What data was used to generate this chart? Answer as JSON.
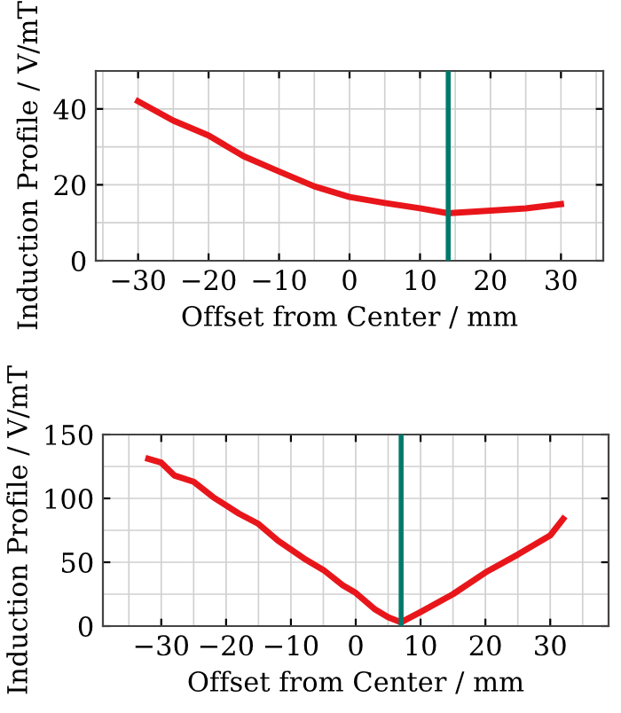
{
  "chart_data": [
    {
      "type": "line",
      "xlabel": "Offset from Center / mm",
      "ylabel": "Induction Profile / V/mT",
      "xlim": [
        -36,
        36
      ],
      "ylim": [
        0,
        50
      ],
      "xticks": [
        -30,
        -20,
        -10,
        0,
        10,
        20,
        30
      ],
      "yticks": [
        0,
        20,
        40
      ],
      "grid": true,
      "marker": "none",
      "line_style": "solid",
      "series": [
        {
          "color": "#e8161b",
          "x": [
            -30,
            -25,
            -20,
            -15,
            -10,
            -5,
            0,
            5,
            10,
            14,
            20,
            25,
            30
          ],
          "values": [
            42,
            36.9,
            33,
            27.5,
            23.5,
            19.6,
            16.8,
            15.2,
            13.8,
            12.5,
            13.2,
            13.8,
            14.9
          ]
        }
      ],
      "ref_lines": [
        {
          "axis": "x",
          "value": 14,
          "color": "#00796b",
          "line_style": "solid"
        }
      ]
    },
    {
      "type": "line",
      "xlabel": "Offset from Center / mm",
      "ylabel": "Induction Profile / V/mT",
      "xlim": [
        -39,
        39
      ],
      "ylim": [
        0,
        150
      ],
      "xticks": [
        -30,
        -20,
        -10,
        0,
        10,
        20,
        30
      ],
      "yticks": [
        0,
        50,
        100,
        150
      ],
      "grid": true,
      "marker": "none",
      "line_style": "solid",
      "series": [
        {
          "color": "#e8161b",
          "x": [
            -32,
            -30,
            -28,
            -25,
            -22,
            -18,
            -15,
            -12,
            -8,
            -5,
            -2,
            0,
            3,
            5,
            7,
            10,
            15,
            20,
            25,
            30,
            32
          ],
          "values": [
            131,
            128,
            118,
            113,
            101,
            88,
            80,
            67,
            53,
            44,
            32,
            26,
            13,
            7,
            3,
            11,
            25,
            42,
            56,
            71,
            84
          ]
        }
      ],
      "ref_lines": [
        {
          "axis": "x",
          "value": 7,
          "color": "#00796b",
          "line_style": "solid"
        }
      ]
    }
  ]
}
